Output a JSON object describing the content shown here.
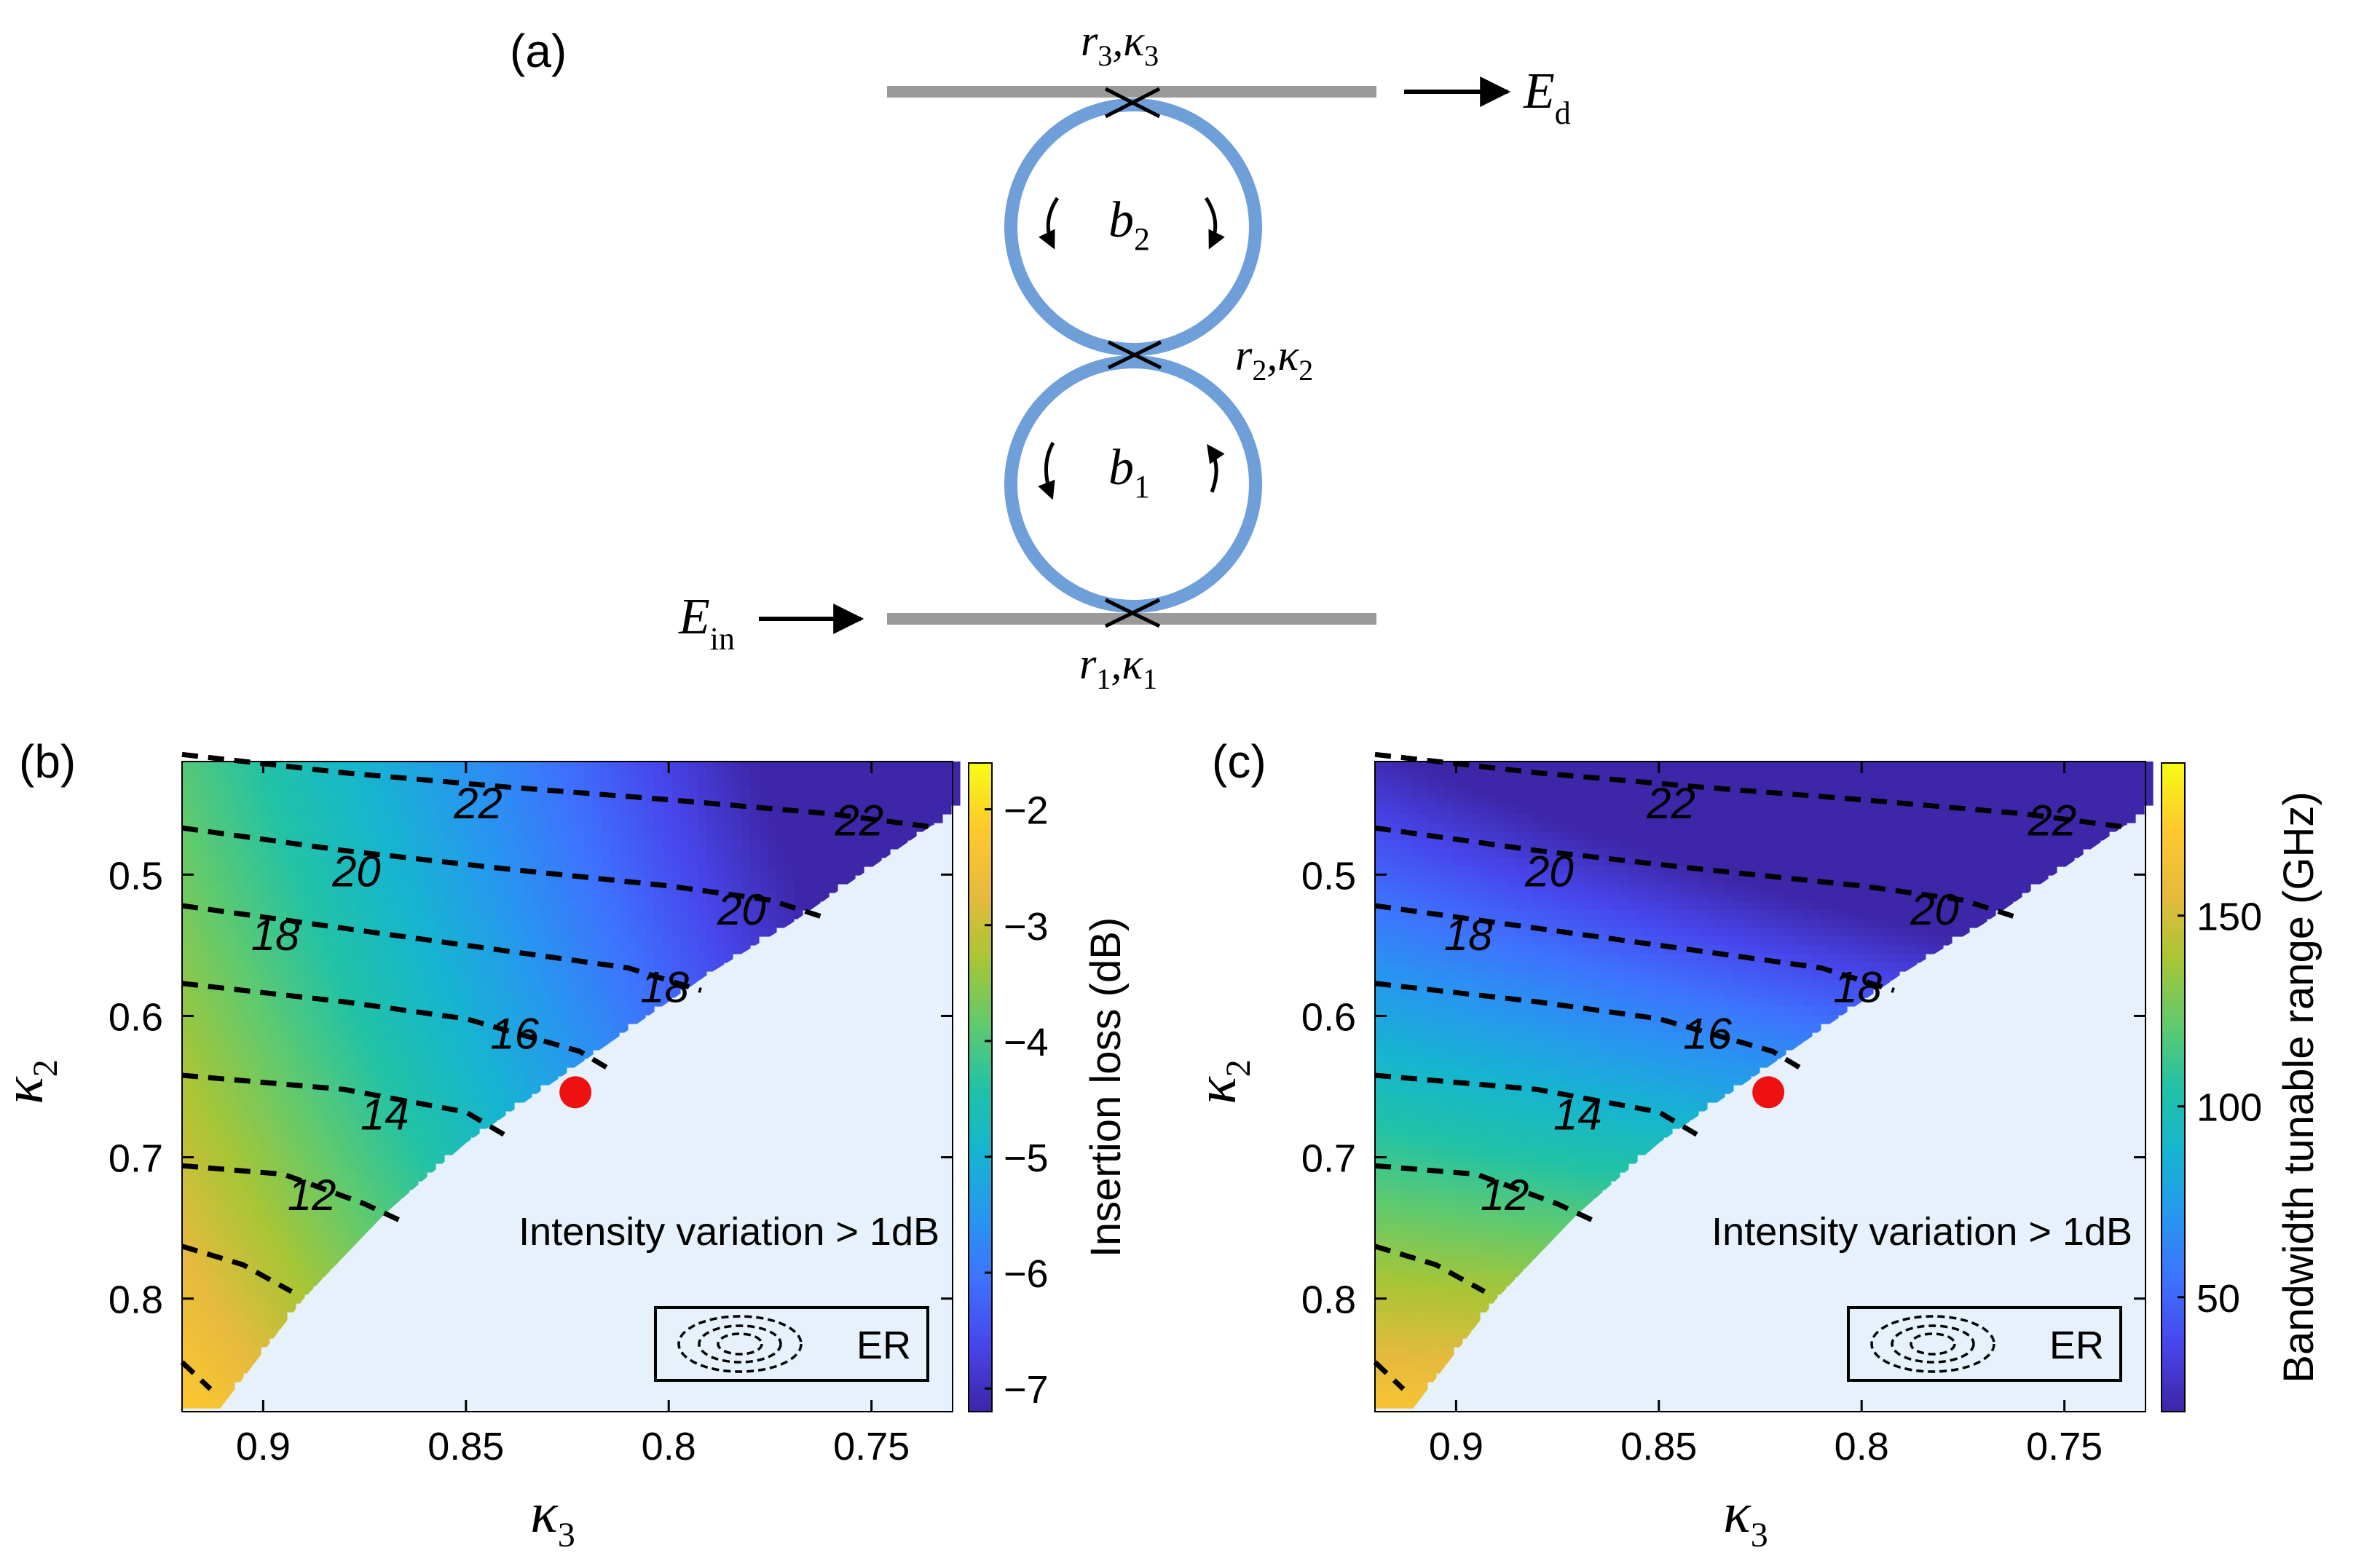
{
  "colors": {
    "waveguide": "#9a9a9a",
    "ring": "#6e9fd8",
    "forbidden_region": "#e6f1fb",
    "operating_point": "#ee1111",
    "contour_line": "#000000",
    "colormap": [
      "#3e26a8",
      "#4746eb",
      "#3e72fe",
      "#2797ef",
      "#16b5d0",
      "#22c2a6",
      "#62ca6c",
      "#a9c535",
      "#e7ba3d",
      "#fdc82e",
      "#f8f915"
    ]
  },
  "panel_a": {
    "label": "(a)",
    "coupler_top": {
      "r": "r",
      "r_sub": "3",
      "k": "κ",
      "k_sub": "3"
    },
    "coupler_mid": {
      "r": "r",
      "r_sub": "2",
      "k": "κ",
      "k_sub": "2"
    },
    "coupler_bottom": {
      "r": "r",
      "r_sub": "1",
      "k": "κ",
      "k_sub": "1"
    },
    "ring_top": {
      "var": "b",
      "sub": "2"
    },
    "ring_bottom": {
      "var": "b",
      "sub": "1"
    },
    "output": {
      "var": "E",
      "sub": "d"
    },
    "input": {
      "var": "E",
      "sub": "in"
    }
  },
  "chart_data": [
    {
      "panel_label": "(b)",
      "type": "heatmap",
      "x_quantity": "κ3",
      "xlabel": {
        "var": "κ",
        "sub": "3"
      },
      "ylabel": {
        "var": "κ",
        "sub": "2"
      },
      "xlim": [
        0.92,
        0.73
      ],
      "ylim": [
        0.42,
        0.88
      ],
      "x_reversed": true,
      "y_reversed": true,
      "xticks": [
        "0.9",
        "0.85",
        "0.8",
        "0.75"
      ],
      "xtick_values": [
        0.9,
        0.85,
        0.8,
        0.75
      ],
      "yticks": [
        "0.5",
        "0.6",
        "0.7",
        "0.8"
      ],
      "ytick_values": [
        0.5,
        0.6,
        0.7,
        0.8
      ],
      "colorbar": {
        "label": "Insertion loss (dB)",
        "range": [
          -7.2,
          -1.6
        ],
        "ticks": [
          "−2",
          "−3",
          "−4",
          "−5",
          "−6",
          "−7"
        ],
        "tick_values": [
          -2,
          -3,
          -4,
          -5,
          -6,
          -7
        ]
      },
      "field": "insertion_loss",
      "contour_labels": [
        {
          "text": "22",
          "x": 0.847,
          "y": 0.45
        },
        {
          "text": "22",
          "x": 0.753,
          "y": 0.462
        },
        {
          "text": "20",
          "x": 0.877,
          "y": 0.498
        },
        {
          "text": "20",
          "x": 0.782,
          "y": 0.525
        },
        {
          "text": "18",
          "x": 0.897,
          "y": 0.543
        },
        {
          "text": "18",
          "x": 0.801,
          "y": 0.58
        },
        {
          "text": "16",
          "x": 0.838,
          "y": 0.613
        },
        {
          "text": "14",
          "x": 0.87,
          "y": 0.67
        },
        {
          "text": "12",
          "x": 0.888,
          "y": 0.727
        }
      ],
      "contours": [
        {
          "level": 22,
          "points": [
            [
              0.92,
              0.415
            ],
            [
              0.88,
              0.428
            ],
            [
              0.84,
              0.438
            ],
            [
              0.8,
              0.447
            ],
            [
              0.76,
              0.457
            ],
            [
              0.736,
              0.466
            ]
          ]
        },
        {
          "level": 20,
          "points": [
            [
              0.92,
              0.467
            ],
            [
              0.88,
              0.483
            ],
            [
              0.84,
              0.496
            ],
            [
              0.8,
              0.508
            ],
            [
              0.775,
              0.518
            ],
            [
              0.762,
              0.53
            ]
          ]
        },
        {
          "level": 18,
          "points": [
            [
              0.92,
              0.522
            ],
            [
              0.88,
              0.538
            ],
            [
              0.84,
              0.554
            ],
            [
              0.81,
              0.566
            ],
            [
              0.792,
              0.582
            ]
          ]
        },
        {
          "level": 16,
          "points": [
            [
              0.92,
              0.577
            ],
            [
              0.88,
              0.59
            ],
            [
              0.85,
              0.602
            ],
            [
              0.822,
              0.625
            ],
            [
              0.815,
              0.637
            ]
          ]
        },
        {
          "level": 14,
          "points": [
            [
              0.92,
              0.642
            ],
            [
              0.88,
              0.652
            ],
            [
              0.85,
              0.668
            ],
            [
              0.84,
              0.685
            ]
          ]
        },
        {
          "level": 12,
          "points": [
            [
              0.92,
              0.706
            ],
            [
              0.895,
              0.712
            ],
            [
              0.875,
              0.733
            ],
            [
              0.866,
              0.745
            ]
          ]
        },
        {
          "level": 10,
          "points": [
            [
              0.92,
              0.763
            ],
            [
              0.905,
              0.776
            ],
            [
              0.893,
              0.795
            ]
          ]
        },
        {
          "level": 8,
          "points": [
            [
              0.92,
              0.845
            ],
            [
              0.913,
              0.864
            ]
          ]
        }
      ],
      "boundary": [
        [
          0.9112,
          0.88
        ],
        [
          0.89,
          0.8
        ],
        [
          0.87,
          0.74
        ],
        [
          0.85,
          0.69
        ],
        [
          0.83,
          0.65
        ],
        [
          0.81,
          0.61
        ],
        [
          0.79,
          0.57
        ],
        [
          0.77,
          0.535
        ],
        [
          0.75,
          0.495
        ],
        [
          0.735,
          0.465
        ]
      ],
      "operating_point": {
        "x": 0.823,
        "y": 0.654
      },
      "region_annotation": "Intensity variation > 1dB",
      "legend_text": "ER"
    },
    {
      "panel_label": "(c)",
      "type": "heatmap",
      "x_quantity": "κ3",
      "xlabel": {
        "var": "κ",
        "sub": "3"
      },
      "ylabel": {
        "var": "κ",
        "sub": "2"
      },
      "xlim": [
        0.92,
        0.73
      ],
      "ylim": [
        0.42,
        0.88
      ],
      "x_reversed": true,
      "y_reversed": true,
      "xticks": [
        "0.9",
        "0.85",
        "0.8",
        "0.75"
      ],
      "xtick_values": [
        0.9,
        0.85,
        0.8,
        0.75
      ],
      "yticks": [
        "0.5",
        "0.6",
        "0.7",
        "0.8"
      ],
      "ytick_values": [
        0.5,
        0.6,
        0.7,
        0.8
      ],
      "colorbar": {
        "label": "Bandwidth tunable range (GHz)",
        "range": [
          20,
          190
        ],
        "ticks": [
          "150",
          "100",
          "50"
        ],
        "tick_values": [
          150,
          100,
          50
        ]
      },
      "field": "bandwidth_range",
      "contour_labels": [
        {
          "text": "22",
          "x": 0.847,
          "y": 0.45
        },
        {
          "text": "22",
          "x": 0.753,
          "y": 0.462
        },
        {
          "text": "20",
          "x": 0.877,
          "y": 0.498
        },
        {
          "text": "20",
          "x": 0.782,
          "y": 0.525
        },
        {
          "text": "18",
          "x": 0.897,
          "y": 0.543
        },
        {
          "text": "18",
          "x": 0.801,
          "y": 0.58
        },
        {
          "text": "16",
          "x": 0.838,
          "y": 0.613
        },
        {
          "text": "14",
          "x": 0.87,
          "y": 0.67
        },
        {
          "text": "12",
          "x": 0.888,
          "y": 0.727
        }
      ],
      "contours": [
        {
          "level": 22,
          "points": [
            [
              0.92,
              0.415
            ],
            [
              0.88,
              0.428
            ],
            [
              0.84,
              0.438
            ],
            [
              0.8,
              0.447
            ],
            [
              0.76,
              0.457
            ],
            [
              0.736,
              0.466
            ]
          ]
        },
        {
          "level": 20,
          "points": [
            [
              0.92,
              0.467
            ],
            [
              0.88,
              0.483
            ],
            [
              0.84,
              0.496
            ],
            [
              0.8,
              0.508
            ],
            [
              0.775,
              0.518
            ],
            [
              0.762,
              0.53
            ]
          ]
        },
        {
          "level": 18,
          "points": [
            [
              0.92,
              0.522
            ],
            [
              0.88,
              0.538
            ],
            [
              0.84,
              0.554
            ],
            [
              0.81,
              0.566
            ],
            [
              0.792,
              0.582
            ]
          ]
        },
        {
          "level": 16,
          "points": [
            [
              0.92,
              0.577
            ],
            [
              0.88,
              0.59
            ],
            [
              0.85,
              0.602
            ],
            [
              0.822,
              0.625
            ],
            [
              0.815,
              0.637
            ]
          ]
        },
        {
          "level": 14,
          "points": [
            [
              0.92,
              0.642
            ],
            [
              0.88,
              0.652
            ],
            [
              0.85,
              0.668
            ],
            [
              0.84,
              0.685
            ]
          ]
        },
        {
          "level": 12,
          "points": [
            [
              0.92,
              0.706
            ],
            [
              0.895,
              0.712
            ],
            [
              0.875,
              0.733
            ],
            [
              0.866,
              0.745
            ]
          ]
        },
        {
          "level": 10,
          "points": [
            [
              0.92,
              0.763
            ],
            [
              0.905,
              0.776
            ],
            [
              0.893,
              0.795
            ]
          ]
        },
        {
          "level": 8,
          "points": [
            [
              0.92,
              0.845
            ],
            [
              0.913,
              0.864
            ]
          ]
        }
      ],
      "boundary": [
        [
          0.9112,
          0.88
        ],
        [
          0.89,
          0.8
        ],
        [
          0.87,
          0.74
        ],
        [
          0.85,
          0.69
        ],
        [
          0.83,
          0.65
        ],
        [
          0.81,
          0.61
        ],
        [
          0.79,
          0.57
        ],
        [
          0.77,
          0.535
        ],
        [
          0.75,
          0.495
        ],
        [
          0.735,
          0.465
        ]
      ],
      "operating_point": {
        "x": 0.823,
        "y": 0.654
      },
      "region_annotation": "Intensity variation > 1dB",
      "legend_text": "ER"
    }
  ]
}
